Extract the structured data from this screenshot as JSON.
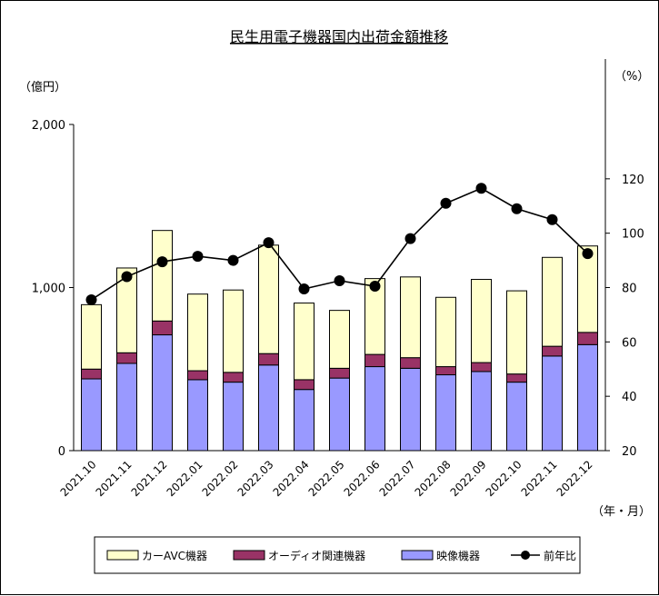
{
  "chart_data": {
    "type": "bar",
    "title": "民生用電子機器国内出荷金額推移",
    "y_left_unit": "（億円）",
    "y_right_unit": "（%）",
    "x_unit": "（年・月）",
    "categories": [
      "2021.10",
      "2021.11",
      "2021.12",
      "2022.01",
      "2022.02",
      "2022.03",
      "2022.04",
      "2022.05",
      "2022.06",
      "2022.07",
      "2022.08",
      "2022.09",
      "2022.10",
      "2022.11",
      "2022.12"
    ],
    "series": [
      {
        "name": "映像機器",
        "kind": "stacked-bar",
        "color": "#9999ff",
        "values": [
          440,
          535,
          710,
          435,
          420,
          525,
          375,
          445,
          515,
          505,
          465,
          485,
          420,
          580,
          650
        ]
      },
      {
        "name": "オーディオ関連機器",
        "kind": "stacked-bar",
        "color": "#993366",
        "values": [
          60,
          65,
          85,
          55,
          60,
          70,
          60,
          60,
          75,
          65,
          50,
          55,
          50,
          60,
          75
        ]
      },
      {
        "name": "カーAVC機器",
        "kind": "stacked-bar",
        "color": "#ffffcc",
        "values": [
          395,
          520,
          555,
          470,
          505,
          665,
          470,
          355,
          465,
          495,
          425,
          510,
          510,
          545,
          530
        ]
      },
      {
        "name": "前年比",
        "kind": "line",
        "axis": "right",
        "color": "#000000",
        "values": [
          75.5,
          84,
          89.5,
          91.5,
          90,
          96.5,
          79.5,
          82.5,
          80.5,
          98,
          111,
          116.5,
          109,
          105,
          92.5
        ]
      }
    ],
    "y_left": {
      "min": 0,
      "max": 2000,
      "ticks": [
        0,
        1000,
        2000
      ],
      "tick_labels": [
        "0",
        "1,000",
        "2,000"
      ]
    },
    "y_right": {
      "min": 20,
      "max": 140,
      "ticks": [
        20,
        40,
        60,
        80,
        100,
        120
      ],
      "tick_labels": [
        "20",
        "40",
        "60",
        "80",
        "100",
        "120"
      ]
    },
    "grid": false,
    "legend": {
      "position": "bottom",
      "items": [
        {
          "label": "カーAVC機器",
          "symbol": "box",
          "color": "#ffffcc"
        },
        {
          "label": "オーディオ関連機器",
          "symbol": "box",
          "color": "#993366"
        },
        {
          "label": "映像機器",
          "symbol": "box",
          "color": "#9999ff"
        },
        {
          "label": "前年比",
          "symbol": "line-marker",
          "color": "#000000"
        }
      ]
    }
  }
}
